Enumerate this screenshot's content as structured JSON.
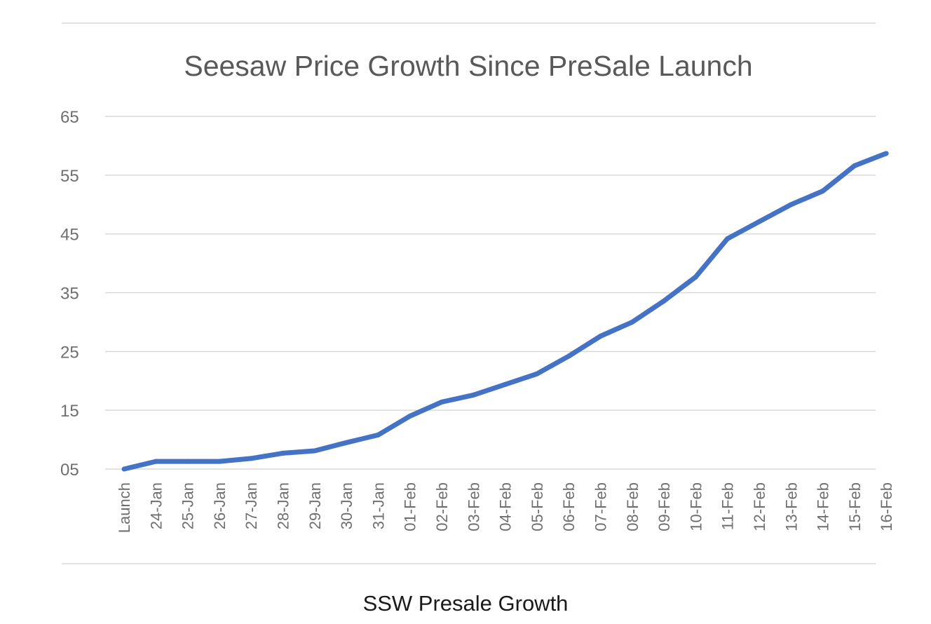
{
  "chart_data": {
    "type": "line",
    "title": "Seesaw Price Growth Since PreSale Launch",
    "xlabel": "",
    "ylabel": "",
    "categories": [
      "Launch",
      "24-Jan",
      "25-Jan",
      "26-Jan",
      "27-Jan",
      "28-Jan",
      "29-Jan",
      "30-Jan",
      "31-Jan",
      "01-Feb",
      "02-Feb",
      "03-Feb",
      "04-Feb",
      "05-Feb",
      "06-Feb",
      "07-Feb",
      "08-Feb",
      "09-Feb",
      "10-Feb",
      "11-Feb",
      "12-Feb",
      "13-Feb",
      "14-Feb",
      "15-Feb",
      "16-Feb"
    ],
    "y_tick_labels": [
      "05",
      "15",
      "25",
      "35",
      "45",
      "55",
      "65"
    ],
    "ylim": [
      5,
      65
    ],
    "grid": true,
    "series": [
      {
        "values": [
          5.0,
          6.3,
          6.3,
          6.3,
          6.8,
          7.7,
          8.1,
          9.5,
          10.8,
          14.0,
          16.4,
          17.6,
          19.4,
          21.2,
          24.2,
          27.6,
          30.0,
          33.6,
          37.7,
          44.2,
          47.1,
          50.0,
          52.3,
          56.6,
          58.7
        ]
      }
    ],
    "colors": {
      "line": "#4472c4"
    }
  },
  "caption": "SSW Presale Growth"
}
